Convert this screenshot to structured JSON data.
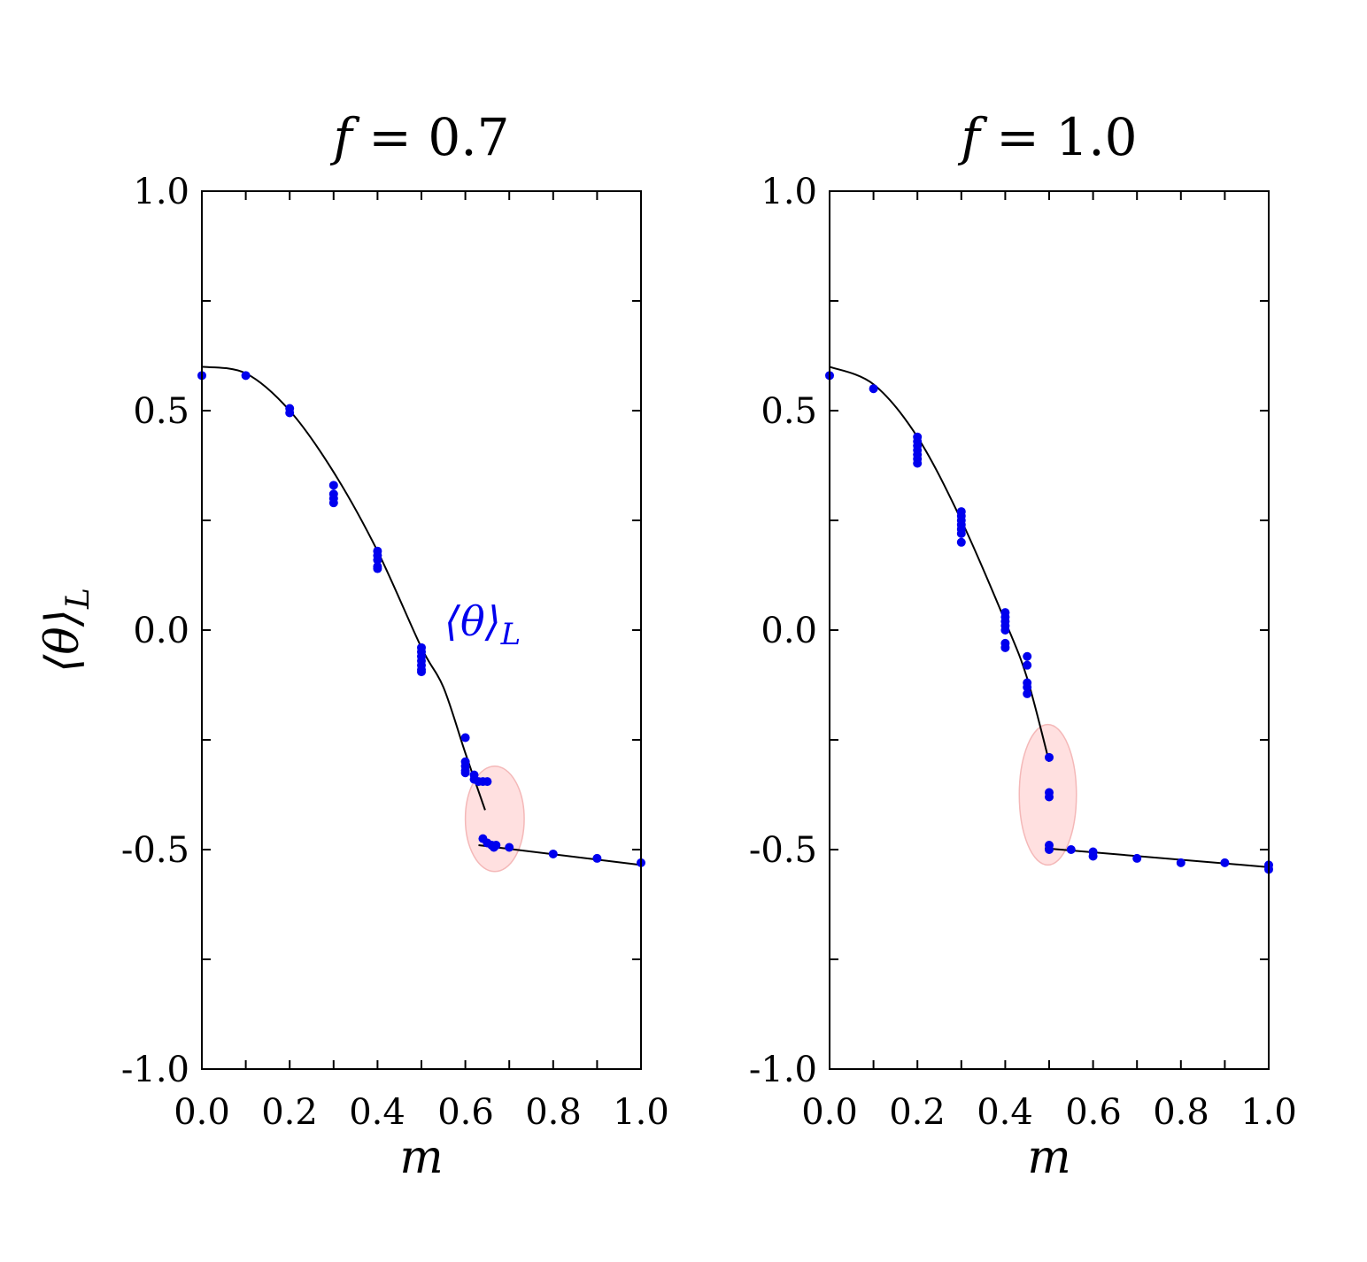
{
  "chart_data": [
    {
      "type": "scatter",
      "title": "f = 0.7",
      "title_parts": {
        "var": "f",
        "eq": " = 0.7"
      },
      "xlabel": "m",
      "ylabel": "⟨θ⟩_L",
      "ylabel_parts": {
        "main": "⟨θ⟩",
        "sub": "L"
      },
      "xlim": [
        0.0,
        1.0
      ],
      "ylim": [
        -1.0,
        1.0
      ],
      "xticks": [
        "0.0",
        "0.2",
        "0.4",
        "0.6",
        "0.8",
        "1.0"
      ],
      "yticks": [
        "-1.0",
        "-0.5",
        "0.0",
        "0.5",
        "1.0"
      ],
      "annotation": {
        "main": "⟨θ⟩",
        "sub": "L",
        "color": "#0000ee",
        "x": 0.55,
        "y": 0.0
      },
      "highlight_ellipse": {
        "cx": 0.667,
        "cy": -0.43,
        "rx": 0.067,
        "ry": 0.12,
        "color": "#ffd6d6"
      },
      "points_color": "#0000ee",
      "points": [
        [
          0.0,
          0.58
        ],
        [
          0.1,
          0.58
        ],
        [
          0.2,
          0.505
        ],
        [
          0.2,
          0.495
        ],
        [
          0.3,
          0.33
        ],
        [
          0.3,
          0.31
        ],
        [
          0.3,
          0.3
        ],
        [
          0.3,
          0.29
        ],
        [
          0.4,
          0.18
        ],
        [
          0.4,
          0.17
        ],
        [
          0.4,
          0.16
        ],
        [
          0.4,
          0.145
        ],
        [
          0.4,
          0.14
        ],
        [
          0.5,
          -0.04
        ],
        [
          0.5,
          -0.05
        ],
        [
          0.5,
          -0.06
        ],
        [
          0.5,
          -0.07
        ],
        [
          0.5,
          -0.08
        ],
        [
          0.5,
          -0.09
        ],
        [
          0.5,
          -0.095
        ],
        [
          0.6,
          -0.245
        ],
        [
          0.6,
          -0.3
        ],
        [
          0.6,
          -0.31
        ],
        [
          0.6,
          -0.32
        ],
        [
          0.6,
          -0.325
        ],
        [
          0.62,
          -0.33
        ],
        [
          0.62,
          -0.34
        ],
        [
          0.63,
          -0.345
        ],
        [
          0.64,
          -0.345
        ],
        [
          0.65,
          -0.345
        ],
        [
          0.64,
          -0.475
        ],
        [
          0.65,
          -0.485
        ],
        [
          0.66,
          -0.49
        ],
        [
          0.665,
          -0.495
        ],
        [
          0.67,
          -0.49
        ],
        [
          0.7,
          -0.495
        ],
        [
          0.8,
          -0.51
        ],
        [
          0.9,
          -0.52
        ],
        [
          1.0,
          -0.53
        ]
      ],
      "fit_curve": [
        [
          0.0,
          0.6
        ],
        [
          0.1,
          0.585
        ],
        [
          0.2,
          0.5
        ],
        [
          0.3,
          0.36
        ],
        [
          0.4,
          0.18
        ],
        [
          0.5,
          -0.04
        ],
        [
          0.55,
          -0.13
        ],
        [
          0.6,
          -0.28
        ],
        [
          0.645,
          -0.41
        ]
      ],
      "fit_line": [
        [
          0.63,
          -0.49
        ],
        [
          1.0,
          -0.535
        ]
      ]
    },
    {
      "type": "scatter",
      "title": "f = 1.0",
      "title_parts": {
        "var": "f",
        "eq": " = 1.0"
      },
      "xlabel": "m",
      "ylabel": "",
      "xlim": [
        0.0,
        1.0
      ],
      "ylim": [
        -1.0,
        1.0
      ],
      "xticks": [
        "0.0",
        "0.2",
        "0.4",
        "0.6",
        "0.8",
        "1.0"
      ],
      "yticks": [
        "-1.0",
        "-0.5",
        "0.0",
        "0.5",
        "1.0"
      ],
      "highlight_ellipse": {
        "cx": 0.497,
        "cy": -0.375,
        "rx": 0.065,
        "ry": 0.16,
        "color": "#ffd6d6"
      },
      "points_color": "#0000ee",
      "points": [
        [
          0.0,
          0.58
        ],
        [
          0.1,
          0.55
        ],
        [
          0.2,
          0.44
        ],
        [
          0.2,
          0.43
        ],
        [
          0.2,
          0.42
        ],
        [
          0.2,
          0.41
        ],
        [
          0.2,
          0.4
        ],
        [
          0.2,
          0.39
        ],
        [
          0.2,
          0.38
        ],
        [
          0.3,
          0.27
        ],
        [
          0.3,
          0.26
        ],
        [
          0.3,
          0.25
        ],
        [
          0.3,
          0.24
        ],
        [
          0.3,
          0.23
        ],
        [
          0.3,
          0.22
        ],
        [
          0.3,
          0.2
        ],
        [
          0.4,
          0.04
        ],
        [
          0.4,
          0.03
        ],
        [
          0.4,
          0.02
        ],
        [
          0.4,
          0.01
        ],
        [
          0.4,
          0.0
        ],
        [
          0.4,
          -0.03
        ],
        [
          0.4,
          -0.04
        ],
        [
          0.45,
          -0.06
        ],
        [
          0.45,
          -0.08
        ],
        [
          0.45,
          -0.12
        ],
        [
          0.45,
          -0.13
        ],
        [
          0.45,
          -0.145
        ],
        [
          0.5,
          -0.29
        ],
        [
          0.5,
          -0.37
        ],
        [
          0.5,
          -0.38
        ],
        [
          0.5,
          -0.49
        ],
        [
          0.5,
          -0.5
        ],
        [
          0.55,
          -0.5
        ],
        [
          0.6,
          -0.505
        ],
        [
          0.6,
          -0.515
        ],
        [
          0.7,
          -0.52
        ],
        [
          0.8,
          -0.53
        ],
        [
          0.9,
          -0.53
        ],
        [
          1.0,
          -0.535
        ],
        [
          1.0,
          -0.545
        ]
      ],
      "fit_curve": [
        [
          0.0,
          0.6
        ],
        [
          0.1,
          0.56
        ],
        [
          0.2,
          0.44
        ],
        [
          0.3,
          0.25
        ],
        [
          0.4,
          0.02
        ],
        [
          0.45,
          -0.11
        ],
        [
          0.5,
          -0.3
        ]
      ],
      "fit_line": [
        [
          0.49,
          -0.497
        ],
        [
          1.0,
          -0.54
        ]
      ]
    }
  ]
}
